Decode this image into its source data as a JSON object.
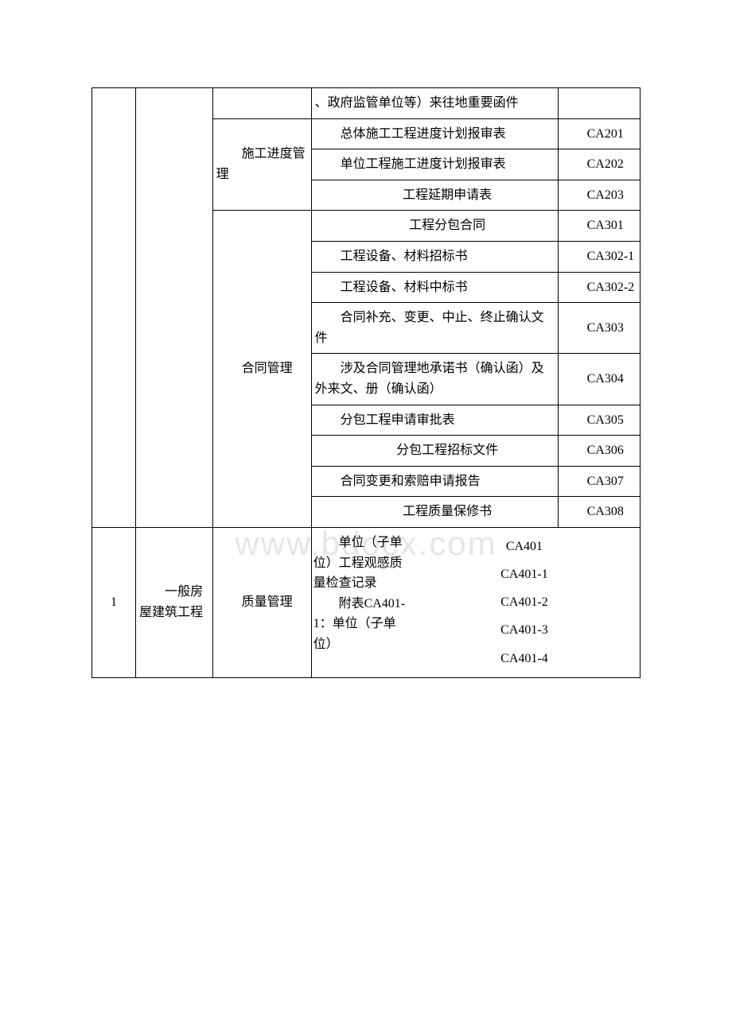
{
  "watermark": "www.bdocx.com",
  "rows": [
    {
      "col1": "",
      "col2": "",
      "col3": "",
      "col4": "、政府监管单位等）来往地重要函件",
      "col5": ""
    },
    {
      "col3": "施工进度管理",
      "items": [
        {
          "desc": "　　总体施工工程进度计划报审表",
          "code": "　　CA201"
        },
        {
          "desc": "　　单位工程施工进度计划报审表",
          "code": "　　CA202"
        },
        {
          "desc": "　　工程延期申请表",
          "code": "　　CA203",
          "center": true
        }
      ]
    },
    {
      "col3": "合同管理",
      "items": [
        {
          "desc": "　　工程分包合同",
          "code": "　　CA301",
          "center": true
        },
        {
          "desc": "　　工程设备、材料招标书",
          "code": "　　CA302-1"
        },
        {
          "desc": "　　工程设备、材料中标书",
          "code": "　　CA302-2"
        },
        {
          "desc": "　　合同补充、变更、中止、终止确认文件",
          "code": "　　CA303"
        },
        {
          "desc": "　　涉及合同管理地承诺书（确认函）及外来文、册（确认函）",
          "code": "　　CA304"
        },
        {
          "desc": "　　分包工程申请审批表",
          "code": "　　CA305"
        },
        {
          "desc": "　　分包工程招标文件",
          "code": "　　CA306",
          "center": true
        },
        {
          "desc": "　　合同变更和索赔申请报告",
          "code": "　　CA307"
        },
        {
          "desc": "　　工程质量保修书",
          "code": "　　CA308",
          "center": true
        }
      ]
    },
    {
      "col1": "1",
      "col2": "　　一般房屋建筑工程",
      "col3": "　　质量管理",
      "col4_left": "　　单位（子单位）工程观感质量检查记录\n　　附表CA401-1：单位（子单位）",
      "col4_right": [
        "CA401",
        "CA401-1",
        "CA401-2",
        "CA401-3",
        "CA401-4"
      ]
    }
  ]
}
